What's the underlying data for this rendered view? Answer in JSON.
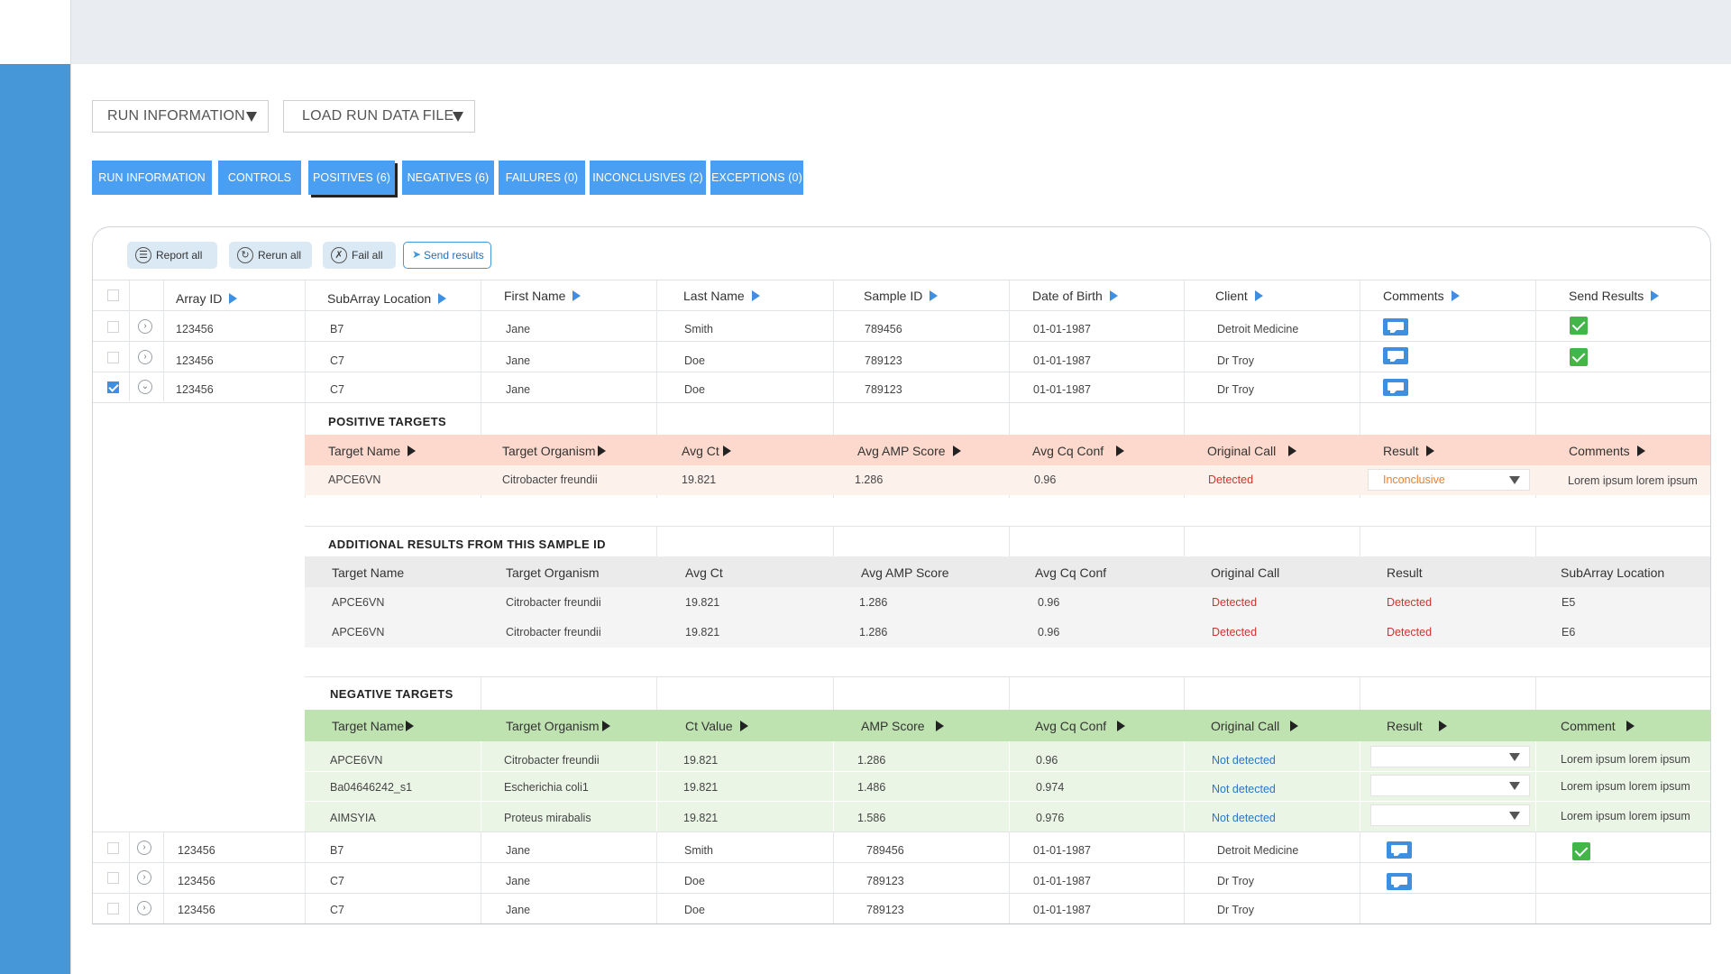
{
  "top_dropdowns": [
    {
      "label": "RUN INFORMATION"
    },
    {
      "label": "LOAD RUN DATA FILE"
    }
  ],
  "tabs": [
    {
      "label": "RUN INFORMATION"
    },
    {
      "label": "CONTROLS"
    },
    {
      "label": "POSITIVES (6)"
    },
    {
      "label": "NEGATIVES (6)"
    },
    {
      "label": "FAILURES (0)"
    },
    {
      "label": "INCONCLUSIVES (2)"
    },
    {
      "label": "EXCEPTIONS (0)"
    }
  ],
  "actions": {
    "report_all": "Report all",
    "rerun_all": "Rerun all",
    "fail_all": "Fail all",
    "send_results": "Send results"
  },
  "main_table": {
    "columns": [
      "Array ID",
      "SubArray Location",
      "First Name",
      "Last Name",
      "Sample ID",
      "Date of Birth",
      "Client",
      "Comments",
      "Send Results"
    ],
    "rows_top": [
      {
        "array_id": "123456",
        "subarray": "B7",
        "first": "Jane",
        "last": "Smith",
        "sample": "789456",
        "dob": "01-01-1987",
        "client": "Detroit Medicine"
      },
      {
        "array_id": "123456",
        "subarray": "C7",
        "first": "Jane",
        "last": "Doe",
        "sample": "789123",
        "dob": "01-01-1987",
        "client": "Dr Troy"
      },
      {
        "array_id": "123456",
        "subarray": "C7",
        "first": "Jane",
        "last": "Doe",
        "sample": "789123",
        "dob": "01-01-1987",
        "client": "Dr Troy"
      }
    ],
    "rows_bottom": [
      {
        "array_id": "123456",
        "subarray": "B7",
        "first": "Jane",
        "last": "Smith",
        "sample": "789456",
        "dob": "01-01-1987",
        "client": "Detroit Medicine"
      },
      {
        "array_id": "123456",
        "subarray": "C7",
        "first": "Jane",
        "last": "Doe",
        "sample": "789123",
        "dob": "01-01-1987",
        "client": "Dr Troy"
      },
      {
        "array_id": "123456",
        "subarray": "C7",
        "first": "Jane",
        "last": "Doe",
        "sample": "789123",
        "dob": "01-01-1987",
        "client": "Dr Troy"
      }
    ]
  },
  "positive_targets": {
    "title": "POSITIVE TARGETS",
    "columns": [
      "Target Name",
      "Target Organism",
      "Avg Ct",
      "Avg AMP Score",
      "Avg Cq Conf",
      "Original Call",
      "Result",
      "Comments"
    ],
    "row": {
      "name": "APCE6VN",
      "organism": "Citrobacter freundii",
      "ct": "19.821",
      "amp": "1.286",
      "cq": "0.96",
      "call": "Detected",
      "result": "Inconclusive",
      "comment": "Lorem ipsum lorem ipsum"
    },
    "colors": {
      "header": "#fcd9cc",
      "row": "#fdf1ec"
    }
  },
  "additional_results": {
    "title": "ADDITIONAL RESULTS FROM THIS SAMPLE ID",
    "columns": [
      "Target Name",
      "Target Organism",
      "Avg Ct",
      "Avg AMP Score",
      "Avg Cq Conf",
      "Original Call",
      "Result",
      "SubArray Location"
    ],
    "rows": [
      {
        "name": "APCE6VN",
        "organism": "Citrobacter freundii",
        "ct": "19.821",
        "amp": "1.286",
        "cq": "0.96",
        "call": "Detected",
        "result": "Detected",
        "loc": "E5"
      },
      {
        "name": "APCE6VN",
        "organism": "Citrobacter freundii",
        "ct": "19.821",
        "amp": "1.286",
        "cq": "0.96",
        "call": "Detected",
        "result": "Detected",
        "loc": "E6"
      }
    ]
  },
  "negative_targets": {
    "title": "NEGATIVE TARGETS",
    "columns": [
      "Target Name",
      "Target Organism",
      "Ct Value",
      "AMP Score",
      "Avg Cq Conf",
      "Original Call",
      "Result",
      "Comment"
    ],
    "rows": [
      {
        "name": "APCE6VN",
        "organism": "Citrobacter freundii",
        "ct": "19.821",
        "amp": "1.286",
        "cq": "0.96",
        "call": "Not detected",
        "comment": "Lorem ipsum lorem ipsum"
      },
      {
        "name": "Ba04646242_s1",
        "organism": "Escherichia coli1",
        "ct": "19.821",
        "amp": "1.486",
        "cq": "0.974",
        "call": "Not detected",
        "comment": "Lorem ipsum lorem ipsum"
      },
      {
        "name": "AIMSYIA",
        "organism": "Proteus mirabalis",
        "ct": "19.821",
        "amp": "1.586",
        "cq": "0.976",
        "call": "Not detected",
        "comment": "Lorem ipsum lorem ipsum"
      }
    ],
    "colors": {
      "header": "#bfe3b0",
      "row": "#ebf5e6"
    }
  },
  "colors": {
    "sidebar": "#4597d8",
    "tab": "#4a9ff2",
    "accent": "#3e8fe0",
    "success": "#42b649"
  }
}
